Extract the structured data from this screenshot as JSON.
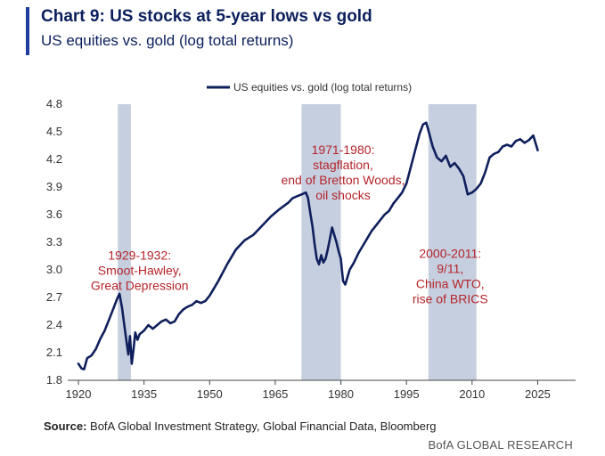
{
  "header": {
    "title": "Chart 9: US stocks at 5-year lows vs gold",
    "subtitle": "US equities vs. gold (log total returns)"
  },
  "footer": {
    "source_label": "Source:",
    "source_text": " BofA Global Investment Strategy, Global Financial Data, Bloomberg",
    "branding": "BofA GLOBAL RESEARCH"
  },
  "colors": {
    "accent": "#1e3f9e",
    "series": "#0f1f5c",
    "shade": "#c6cfe0",
    "annotation": "#b5242a",
    "axis": "#444444"
  },
  "chart_data": {
    "type": "line",
    "legend": {
      "position": "top-center",
      "label": "US equities vs. gold (log total returns)"
    },
    "xlim": [
      1920,
      2030
    ],
    "ylim": [
      1.8,
      4.8
    ],
    "x_ticks": [
      1920,
      1935,
      1950,
      1965,
      1980,
      1995,
      2010,
      2025
    ],
    "y_ticks": [
      1.8,
      2.1,
      2.4,
      2.7,
      3.0,
      3.3,
      3.6,
      3.9,
      4.2,
      4.5,
      4.8
    ],
    "grid": false,
    "shaded_periods": [
      {
        "start": 1929,
        "end": 1932
      },
      {
        "start": 1971,
        "end": 1980
      },
      {
        "start": 2000,
        "end": 2011
      }
    ],
    "annotations": [
      {
        "lines": [
          "1929-1932:",
          "Smoot-Hawley,",
          "Great Depression"
        ],
        "x": 1934,
        "y": 3.11
      },
      {
        "lines": [
          "1971-1980:",
          "stagflation,",
          "end of Bretton Woods,",
          "oil shocks"
        ],
        "x": 1980.5,
        "y": 4.26
      },
      {
        "lines": [
          "2000-2011:",
          "9/11,",
          "China WTO,",
          "rise of BRICS"
        ],
        "x": 2005,
        "y": 3.13
      }
    ],
    "series": [
      {
        "name": "US equities vs. gold (log total returns)",
        "x": [
          1920,
          1920.7,
          1921.3,
          1922,
          1923,
          1924,
          1925,
          1926,
          1927,
          1928,
          1928.8,
          1929.4,
          1930,
          1930.5,
          1931,
          1931.4,
          1931.8,
          1932.2,
          1932.6,
          1933,
          1933.5,
          1934,
          1935,
          1936,
          1937,
          1938,
          1939,
          1940,
          1941,
          1942,
          1943,
          1944,
          1945,
          1946,
          1947,
          1948,
          1949,
          1950,
          1952,
          1954,
          1956,
          1958,
          1960,
          1962,
          1964,
          1965,
          1966,
          1968,
          1969,
          1970,
          1971,
          1972,
          1972.5,
          1973,
          1973.5,
          1974,
          1974.5,
          1975,
          1975.5,
          1976,
          1976.5,
          1977,
          1977.5,
          1978,
          1979,
          1979.5,
          1980,
          1980.5,
          1981,
          1982,
          1983,
          1984,
          1985,
          1986,
          1987,
          1988,
          1989,
          1990,
          1991,
          1992,
          1993,
          1994,
          1995,
          1996,
          1997,
          1998,
          1998.8,
          1999.5,
          2000,
          2001,
          2002,
          2003,
          2004,
          2005,
          2006,
          2007,
          2008,
          2008.5,
          2009,
          2010,
          2011,
          2012,
          2013,
          2014,
          2015,
          2016,
          2017,
          2018,
          2019,
          2020,
          2021,
          2022,
          2023,
          2024,
          2025
        ],
        "values": [
          1.98,
          1.93,
          1.92,
          2.04,
          2.07,
          2.14,
          2.25,
          2.34,
          2.46,
          2.58,
          2.68,
          2.74,
          2.58,
          2.4,
          2.22,
          2.08,
          2.28,
          1.98,
          2.14,
          2.32,
          2.24,
          2.3,
          2.34,
          2.4,
          2.36,
          2.4,
          2.44,
          2.46,
          2.42,
          2.44,
          2.52,
          2.57,
          2.6,
          2.62,
          2.66,
          2.64,
          2.66,
          2.72,
          2.88,
          3.06,
          3.22,
          3.32,
          3.38,
          3.48,
          3.58,
          3.62,
          3.66,
          3.73,
          3.78,
          3.8,
          3.82,
          3.84,
          3.78,
          3.62,
          3.48,
          3.28,
          3.12,
          3.06,
          3.16,
          3.08,
          3.12,
          3.22,
          3.34,
          3.46,
          3.3,
          3.2,
          3.12,
          2.88,
          2.84,
          3.0,
          3.08,
          3.18,
          3.26,
          3.34,
          3.42,
          3.48,
          3.54,
          3.6,
          3.64,
          3.72,
          3.78,
          3.84,
          3.94,
          4.12,
          4.3,
          4.48,
          4.58,
          4.6,
          4.52,
          4.34,
          4.22,
          4.18,
          4.24,
          4.12,
          4.16,
          4.1,
          4.02,
          3.92,
          3.82,
          3.84,
          3.88,
          3.94,
          4.06,
          4.22,
          4.26,
          4.28,
          4.34,
          4.36,
          4.34,
          4.4,
          4.42,
          4.38,
          4.41,
          4.46,
          4.3
        ]
      }
    ]
  }
}
